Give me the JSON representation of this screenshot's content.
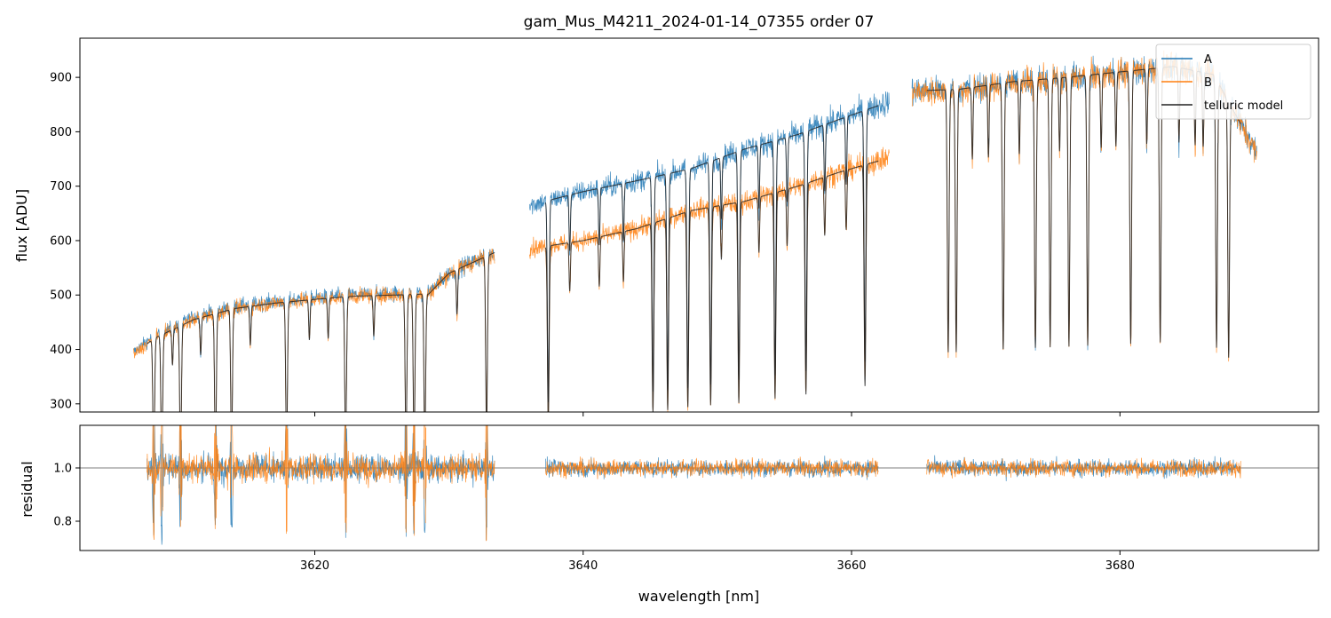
{
  "chart_data": [
    {
      "panel": "top",
      "type": "line",
      "title": "gam_Mus_M4211_2024-01-14_07355  order 07",
      "xlabel": "",
      "ylabel": "flux [ADU]",
      "xlim": [
        3602.5,
        3694.8
      ],
      "ylim": [
        285,
        972
      ],
      "yticks": [
        300,
        400,
        500,
        600,
        700,
        800,
        900
      ],
      "ytick_labels": [
        "300",
        "400",
        "500",
        "600",
        "700",
        "800",
        "900"
      ],
      "xticks": [
        3620,
        3640,
        3660,
        3680
      ],
      "legend": {
        "position": "top-right",
        "entries": [
          "A",
          "B",
          "telluric model"
        ]
      },
      "colors": {
        "A": "#1f77b4",
        "B": "#ff7f0e",
        "telluric model": "#222222"
      },
      "series": [
        {
          "name": "A",
          "segments": [
            {
              "x_start": 3606.5,
              "x_end": 3633.4,
              "continuum": [
                [
                  3606.5,
                  395
                ],
                [
                  3608,
                  425
                ],
                [
                  3611,
                  460
                ],
                [
                  3614,
                  478
                ],
                [
                  3617,
                  488
                ],
                [
                  3620,
                  495
                ],
                [
                  3623,
                  500
                ],
                [
                  3626,
                  503
                ],
                [
                  3628.5,
                  505
                ],
                [
                  3630,
                  540
                ],
                [
                  3633.4,
                  580
                ]
              ]
            },
            {
              "x_start": 3636.0,
              "x_end": 3662.8,
              "continuum": [
                [
                  3636.0,
                  665
                ],
                [
                  3640,
                  690
                ],
                [
                  3644,
                  710
                ],
                [
                  3648,
                  732
                ],
                [
                  3652,
                  768
                ],
                [
                  3656,
                  795
                ],
                [
                  3659,
                  822
                ],
                [
                  3662.8,
                  855
                ]
              ]
            },
            {
              "x_start": 3664.5,
              "x_end": 3690.2,
              "continuum": [
                [
                  3664.5,
                  875
                ],
                [
                  3668,
                  878
                ],
                [
                  3672,
                  892
                ],
                [
                  3676,
                  900
                ],
                [
                  3680,
                  910
                ],
                [
                  3684,
                  920
                ],
                [
                  3687,
                  905
                ],
                [
                  3690.2,
                  760
                ]
              ]
            }
          ],
          "absorption_lines_nm": [
            3608,
            3608.6,
            3610,
            3612.6,
            3613.8,
            3617.9,
            3622.3,
            3626.8,
            3627.4,
            3628.2,
            3632.8,
            3637.4,
            3645.2,
            3646.3,
            3647.8,
            3649.5,
            3651.6,
            3654.3,
            3656.6,
            3661,
            3667.2,
            3667.8,
            3671.3,
            3673.7,
            3674.8,
            3676.2,
            3677.6,
            3680.8,
            3683,
            3687.2,
            3688.1
          ]
        },
        {
          "name": "B",
          "segments": [
            {
              "x_start": 3606.5,
              "x_end": 3633.4,
              "continuum": [
                [
                  3606.5,
                  390
                ],
                [
                  3608,
                  420
                ],
                [
                  3611,
                  455
                ],
                [
                  3614,
                  475
                ],
                [
                  3617,
                  485
                ],
                [
                  3620,
                  492
                ],
                [
                  3623,
                  498
                ],
                [
                  3626,
                  500
                ],
                [
                  3628.5,
                  502
                ],
                [
                  3630,
                  540
                ],
                [
                  3633.4,
                  578
                ]
              ]
            },
            {
              "x_start": 3636.0,
              "x_end": 3662.8,
              "continuum": [
                [
                  3636.0,
                  585
                ],
                [
                  3640,
                  600
                ],
                [
                  3644,
                  622
                ],
                [
                  3648,
                  655
                ],
                [
                  3652,
                  672
                ],
                [
                  3656,
                  700
                ],
                [
                  3659,
                  725
                ],
                [
                  3662.8,
                  752
                ]
              ]
            },
            {
              "x_start": 3664.5,
              "x_end": 3690.2,
              "continuum": [
                [
                  3664.5,
                  872
                ],
                [
                  3668,
                  876
                ],
                [
                  3672,
                  890
                ],
                [
                  3676,
                  898
                ],
                [
                  3680,
                  908
                ],
                [
                  3684,
                  920
                ],
                [
                  3687,
                  905
                ],
                [
                  3690.2,
                  760
                ]
              ]
            }
          ],
          "absorption_lines_nm": [
            3608,
            3608.6,
            3610,
            3612.6,
            3613.8,
            3617.9,
            3622.3,
            3626.8,
            3627.4,
            3628.2,
            3632.8,
            3637.4,
            3645.2,
            3646.3,
            3647.8,
            3649.5,
            3651.6,
            3654.3,
            3656.6,
            3661,
            3667.2,
            3667.8,
            3671.3,
            3673.7,
            3674.8,
            3676.2,
            3677.6,
            3680.8,
            3683,
            3687.2,
            3688.1
          ]
        },
        {
          "name": "telluric model",
          "segments": [
            {
              "x_start": 3607.5,
              "x_end": 3633.4,
              "continuum_of": "B"
            },
            {
              "x_start": 3637.2,
              "x_end": 3662.0,
              "continuum_of": "A"
            },
            {
              "x_start": 3637.2,
              "x_end": 3662.0,
              "continuum_of": "B"
            },
            {
              "x_start": 3665.6,
              "x_end": 3689.0,
              "continuum_of": "A"
            }
          ]
        }
      ]
    },
    {
      "panel": "bottom",
      "type": "line",
      "xlabel": "wavelength [nm]",
      "ylabel": "residual",
      "xlim": [
        3602.5,
        3694.8
      ],
      "ylim": [
        0.69,
        1.16
      ],
      "yticks": [
        0.8,
        1.0
      ],
      "ytick_labels": [
        "0.8",
        "1.0"
      ],
      "xticks": [
        3620,
        3640,
        3660,
        3680
      ],
      "xtick_labels": [
        "3620",
        "3640",
        "3660",
        "3680"
      ],
      "reference_line": 1.0,
      "series": [
        {
          "name": "A",
          "segments": [
            [
              3607.5,
              3633.4
            ],
            [
              3637.2,
              3662.0
            ],
            [
              3665.6,
              3689.0
            ]
          ],
          "mean": 1.0,
          "noise": 0.03
        },
        {
          "name": "B",
          "segments": [
            [
              3607.5,
              3633.4
            ],
            [
              3637.2,
              3662.0
            ],
            [
              3665.6,
              3689.0
            ]
          ],
          "mean": 1.0,
          "noise": 0.03
        }
      ]
    }
  ]
}
